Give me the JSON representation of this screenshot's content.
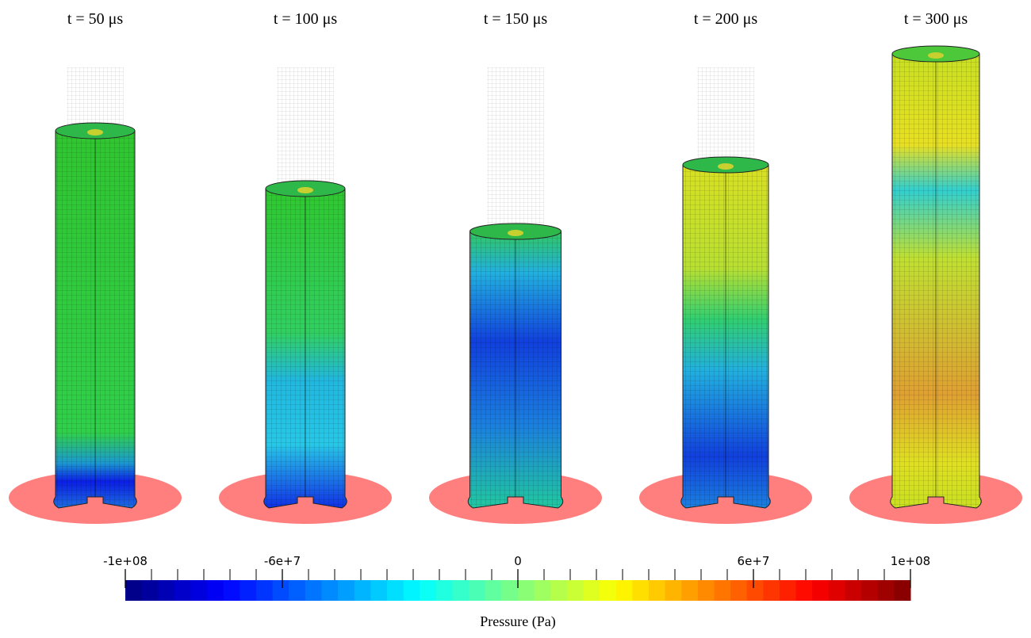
{
  "panels": [
    {
      "title": "t = 50 μs"
    },
    {
      "title": "t = 100 μs"
    },
    {
      "title": "t = 150 μs"
    },
    {
      "title": "t = 200 μs"
    },
    {
      "title": "t = 300 μs"
    }
  ],
  "colorbar": {
    "title": "Pressure (Pa)",
    "range": [
      -100000000,
      100000000
    ],
    "ticks": [
      {
        "value": -100000000,
        "label": "-1e+08"
      },
      {
        "value": -60000000,
        "label": "-6e+7"
      },
      0,
      {
        "value": 60000000,
        "label": "6e+7"
      },
      {
        "value": 100000000,
        "label": "1e+08"
      }
    ]
  }
}
